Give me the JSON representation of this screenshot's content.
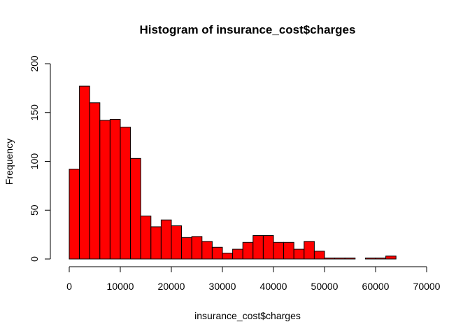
{
  "chart_data": {
    "type": "bar",
    "title": "Histogram of insurance_cost$charges",
    "xlabel": "insurance_cost$charges",
    "ylabel": "Frequency",
    "bin_width": 2000,
    "bin_starts": [
      0,
      2000,
      4000,
      6000,
      8000,
      10000,
      12000,
      14000,
      16000,
      18000,
      20000,
      22000,
      24000,
      26000,
      28000,
      30000,
      32000,
      34000,
      36000,
      38000,
      40000,
      42000,
      44000,
      46000,
      48000,
      50000,
      52000,
      54000,
      56000,
      58000,
      60000,
      62000
    ],
    "values": [
      92,
      177,
      160,
      142,
      143,
      135,
      103,
      44,
      33,
      40,
      34,
      22,
      23,
      18,
      12,
      6,
      10,
      17,
      24,
      24,
      17,
      17,
      10,
      18,
      8,
      1,
      1,
      1,
      0,
      1,
      1,
      3
    ],
    "xlim": [
      0,
      70000
    ],
    "ylim": [
      0,
      200
    ],
    "x_ticks": [
      "0",
      "10000",
      "20000",
      "30000",
      "40000",
      "50000",
      "60000",
      "70000"
    ],
    "y_ticks": [
      "0",
      "50",
      "100",
      "150",
      "200"
    ],
    "bar_color": "#FF0000",
    "bar_border_color": "#000000",
    "grid": false
  }
}
